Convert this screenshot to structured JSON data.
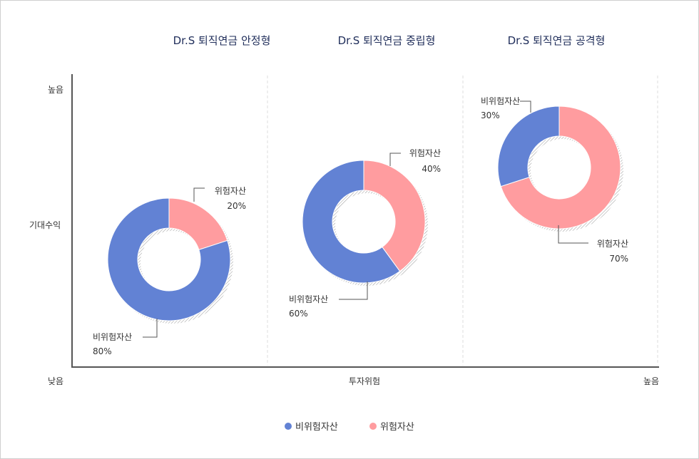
{
  "chart_data": {
    "type": "pie",
    "subtype": "donut",
    "colors": {
      "non_risk": "#6282d4",
      "risk": "#ff9c9f"
    },
    "axes": {
      "y_label": "기대수익",
      "y_high": "높음",
      "origin_low": "낮음",
      "x_label": "투자위험",
      "x_high": "높음"
    },
    "charts": [
      {
        "title": "Dr.S 퇴직연금 안정형",
        "slices": [
          {
            "label": "위험자산",
            "value": 20,
            "value_label": "20%",
            "key": "risk"
          },
          {
            "label": "비위험자산",
            "value": 80,
            "value_label": "80%",
            "key": "non_risk"
          }
        ]
      },
      {
        "title": "Dr.S 퇴직연금 중립형",
        "slices": [
          {
            "label": "위험자산",
            "value": 40,
            "value_label": "40%",
            "key": "risk"
          },
          {
            "label": "비위험자산",
            "value": 60,
            "value_label": "60%",
            "key": "non_risk"
          }
        ]
      },
      {
        "title": "Dr.S 퇴직연금 공격형",
        "slices": [
          {
            "label": "위험자산",
            "value": 70,
            "value_label": "70%",
            "key": "risk"
          },
          {
            "label": "비위험자산",
            "value": 30,
            "value_label": "30%",
            "key": "non_risk"
          }
        ]
      }
    ],
    "legend": [
      {
        "label": "비위험자산",
        "key": "non_risk"
      },
      {
        "label": "위험자산",
        "key": "risk"
      }
    ],
    "legend_position": "bottom-center"
  }
}
